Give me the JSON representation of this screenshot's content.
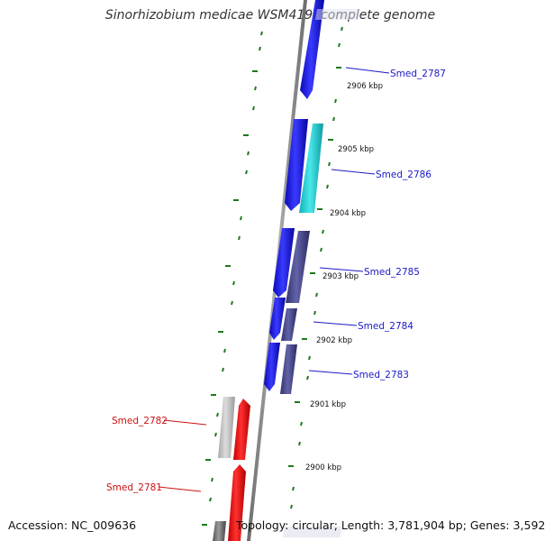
{
  "title": "Sinorhizobium medicae WSM419, complete genome",
  "footer": {
    "accession": "Accession: NC_009636",
    "topology": "Topology: circular; Length: 3,781,904 bp; Genes: 3,592"
  },
  "colors": {
    "backbone": "#8a8a8a",
    "ticks": "#1d7a1d",
    "forward_gene": "#1a1aee",
    "forward_gene_alt": "#2ad2d6",
    "reverse_gene": "#4a4a8c",
    "highlight_gene": "#ee1111",
    "neutral_gene": "#b8b8b8",
    "label_blue": "#1a1ac8",
    "label_red": "#cc1111"
  },
  "scale": {
    "labels": [
      {
        "text": "2906 kbp",
        "kbp": 2906
      },
      {
        "text": "2905 kbp",
        "kbp": 2905
      },
      {
        "text": "2904 kbp",
        "kbp": 2904
      },
      {
        "text": "2903 kbp",
        "kbp": 2903
      },
      {
        "text": "2902 kbp",
        "kbp": 2902
      },
      {
        "text": "2901 kbp",
        "kbp": 2901
      },
      {
        "text": "2900 kbp",
        "kbp": 2900
      }
    ]
  },
  "genes": [
    {
      "name": "Smed_2787",
      "color": "label_blue"
    },
    {
      "name": "Smed_2786",
      "color": "label_blue"
    },
    {
      "name": "Smed_2785",
      "color": "label_blue"
    },
    {
      "name": "Smed_2784",
      "color": "label_blue"
    },
    {
      "name": "Smed_2783",
      "color": "label_blue"
    },
    {
      "name": "Smed_2782",
      "color": "label_red"
    },
    {
      "name": "Smed_2781",
      "color": "label_red"
    }
  ]
}
